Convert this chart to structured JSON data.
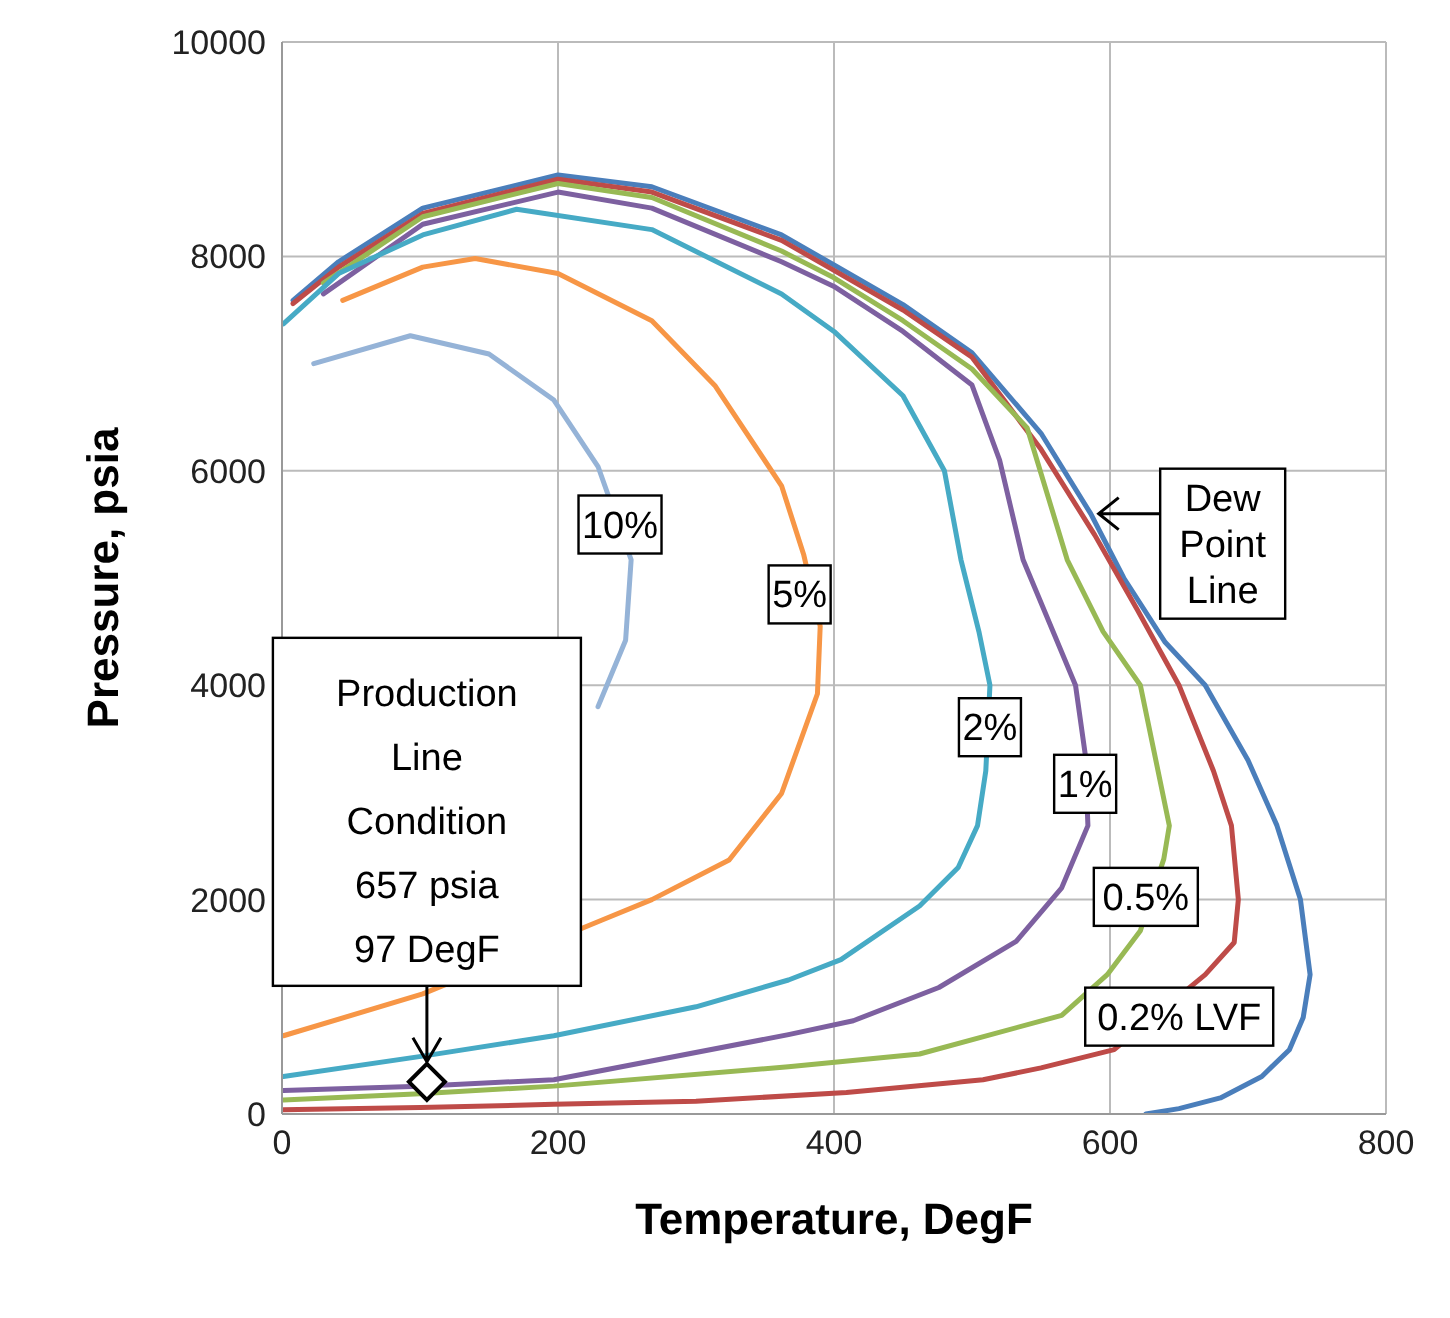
{
  "chart_data": {
    "type": "line",
    "xlabel": "Temperature, DegF",
    "ylabel": "Pressure, psia",
    "xlim": [
      0,
      800
    ],
    "xticks": [
      0,
      200,
      400,
      600,
      800
    ],
    "ylim": [
      0,
      10000
    ],
    "yticks": [
      0,
      2000,
      4000,
      6000,
      8000,
      10000
    ],
    "grid": true,
    "marker": "none",
    "line_style": "solid",
    "series": [
      {
        "name": "Dew Point Line",
        "color": "#4a7ebb",
        "x": [
          8,
          41,
          102,
          200,
          268,
          362,
          400,
          450,
          500,
          550,
          586,
          610,
          640,
          669,
          700,
          721,
          738,
          745,
          740,
          730,
          710,
          680,
          650,
          626
        ],
        "values": [
          7590,
          7950,
          8450,
          8760,
          8650,
          8200,
          7920,
          7550,
          7100,
          6350,
          5600,
          5000,
          4400,
          4000,
          3300,
          2690,
          2000,
          1300,
          900,
          600,
          350,
          150,
          50,
          0
        ]
      },
      {
        "name": "0.2% LVF",
        "color": "#be4b48",
        "x": [
          8,
          41,
          102,
          200,
          268,
          362,
          400,
          450,
          500,
          550,
          589,
          620,
          650,
          675,
          688,
          693,
          690,
          669,
          603,
          550,
          508,
          409,
          300,
          197,
          100,
          1
        ],
        "values": [
          7560,
          7900,
          8400,
          8720,
          8600,
          8150,
          7870,
          7500,
          7060,
          6200,
          5400,
          4700,
          4000,
          3200,
          2690,
          2000,
          1600,
          1300,
          600,
          430,
          320,
          200,
          120,
          90,
          60,
          40
        ]
      },
      {
        "name": "0.5%",
        "color": "#98b954",
        "x": [
          30,
          102,
          200,
          268,
          362,
          400,
          450,
          500,
          540,
          569,
          595,
          622,
          643,
          639,
          622,
          598,
          565,
          462,
          367,
          197,
          100,
          1
        ],
        "values": [
          7750,
          8370,
          8680,
          8550,
          8050,
          7800,
          7400,
          6950,
          6400,
          5170,
          4500,
          4000,
          2690,
          2380,
          1710,
          1300,
          920,
          560,
          440,
          260,
          190,
          130
        ]
      },
      {
        "name": "1%",
        "color": "#7d60a0",
        "x": [
          30,
          102,
          200,
          268,
          362,
          400,
          450,
          500,
          520,
          537,
          575,
          582,
          584,
          565,
          532,
          476,
          414,
          367,
          197,
          100,
          1
        ],
        "values": [
          7650,
          8300,
          8600,
          8450,
          7950,
          7720,
          7300,
          6800,
          6100,
          5170,
          4000,
          3360,
          2690,
          2110,
          1610,
          1180,
          870,
          740,
          320,
          260,
          220
        ]
      },
      {
        "name": "2%",
        "color": "#46aac5",
        "x": [
          1,
          41,
          102,
          170,
          268,
          362,
          400,
          450,
          480,
          492,
          505,
          513,
          510,
          504,
          490,
          462,
          405,
          367,
          300,
          197,
          102,
          1
        ],
        "values": [
          7370,
          7840,
          8200,
          8440,
          8250,
          7650,
          7300,
          6700,
          6000,
          5170,
          4500,
          4000,
          3200,
          2690,
          2300,
          1940,
          1440,
          1250,
          1000,
          730,
          540,
          350
        ]
      },
      {
        "name": "5%",
        "color": "#f79646",
        "x": [
          44,
          102,
          140,
          200,
          268,
          314,
          362,
          378,
          390,
          388,
          362,
          324,
          268,
          232,
          102,
          1
        ],
        "values": [
          7590,
          7900,
          7980,
          7840,
          7400,
          6790,
          5860,
          5220,
          4550,
          3920,
          2990,
          2370,
          2000,
          1810,
          1120,
          730
        ]
      },
      {
        "name": "10%",
        "color": "#95b3d7",
        "x": [
          23,
          93,
          150,
          197,
          229,
          253,
          249,
          229
        ],
        "values": [
          7000,
          7260,
          7090,
          6660,
          6040,
          5170,
          4420,
          3800
        ]
      },
      {
        "type": "scatter",
        "color": "#000000",
        "marker": "diamond",
        "x": [
          105
        ],
        "values": [
          300
        ]
      }
    ],
    "annotations": [
      {
        "text": "Production\nLine\nCondition\n657 psia\n97 DegF",
        "x": 105,
        "y": 300
      }
    ]
  }
}
